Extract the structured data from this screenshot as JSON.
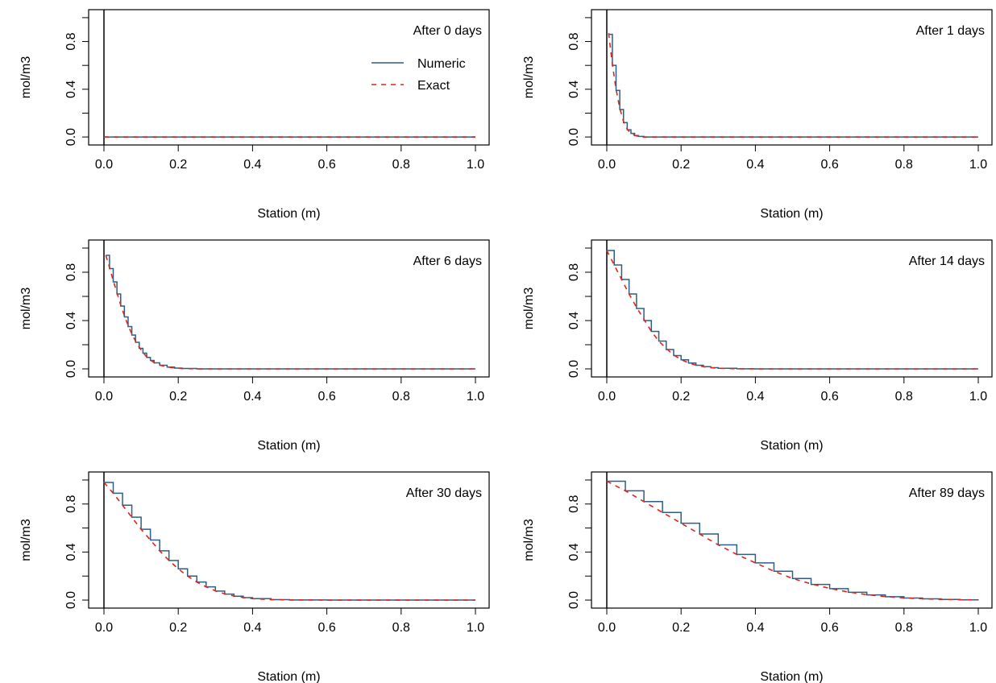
{
  "colors": {
    "numeric": "#2f5e82",
    "exact": "#e2231a"
  },
  "chart_data": [
    {
      "type": "line",
      "title": "After 0 days",
      "xlabel": "Station (m)",
      "ylabel": "mol/m3",
      "xlim": [
        0,
        1
      ],
      "ylim": [
        0,
        1
      ],
      "x_ticks": [
        "0.0",
        "0.2",
        "0.4",
        "0.6",
        "0.8",
        "1.0"
      ],
      "y_ticks": [
        "0.0",
        "0.4",
        "0.8"
      ],
      "legend": {
        "position": "top-right",
        "entries": [
          "Numeric",
          "Exact"
        ]
      },
      "series": [
        {
          "name": "Numeric",
          "style": "step",
          "x": [
            0.0,
            0.1,
            0.2,
            0.3,
            0.4,
            0.5,
            0.6,
            0.7,
            0.8,
            0.9,
            1.0
          ],
          "y": [
            0,
            0,
            0,
            0,
            0,
            0,
            0,
            0,
            0,
            0,
            0
          ]
        },
        {
          "name": "Exact",
          "style": "dashed",
          "x": [
            0.0,
            0.1,
            0.2,
            0.3,
            0.4,
            0.5,
            0.6,
            0.7,
            0.8,
            0.9,
            1.0
          ],
          "y": [
            0,
            0,
            0,
            0,
            0,
            0,
            0,
            0,
            0,
            0,
            0
          ]
        }
      ]
    },
    {
      "type": "line",
      "title": "After 1 days",
      "xlabel": "Station (m)",
      "ylabel": "mol/m3",
      "xlim": [
        0,
        1
      ],
      "ylim": [
        0,
        1
      ],
      "x_ticks": [
        "0.0",
        "0.2",
        "0.4",
        "0.6",
        "0.8",
        "1.0"
      ],
      "y_ticks": [
        "0.0",
        "0.4",
        "0.8"
      ],
      "series": [
        {
          "name": "Numeric",
          "style": "step",
          "x": [
            0.005,
            0.015,
            0.025,
            0.035,
            0.045,
            0.055,
            0.065,
            0.075,
            0.085,
            0.1,
            0.2,
            0.4,
            0.6,
            0.8,
            1.0
          ],
          "y": [
            0.86,
            0.6,
            0.39,
            0.23,
            0.12,
            0.06,
            0.03,
            0.012,
            0.005,
            0.0,
            0.0,
            0.0,
            0.0,
            0.0,
            0.0
          ]
        },
        {
          "name": "Exact",
          "style": "dashed",
          "x": [
            0.005,
            0.015,
            0.025,
            0.035,
            0.045,
            0.055,
            0.065,
            0.075,
            0.085,
            0.1,
            0.2,
            0.4,
            0.6,
            0.8,
            1.0
          ],
          "y": [
            0.87,
            0.61,
            0.4,
            0.24,
            0.13,
            0.065,
            0.03,
            0.013,
            0.005,
            0.0,
            0.0,
            0.0,
            0.0,
            0.0,
            0.0
          ]
        }
      ]
    },
    {
      "type": "line",
      "title": "After 6 days",
      "xlabel": "Station (m)",
      "ylabel": "mol/m3",
      "xlim": [
        0,
        1
      ],
      "ylim": [
        0,
        1
      ],
      "x_ticks": [
        "0.0",
        "0.2",
        "0.4",
        "0.6",
        "0.8",
        "1.0"
      ],
      "y_ticks": [
        "0.0",
        "0.4",
        "0.8"
      ],
      "series": [
        {
          "name": "Numeric",
          "style": "step",
          "x": [
            0.005,
            0.015,
            0.025,
            0.035,
            0.045,
            0.055,
            0.065,
            0.075,
            0.085,
            0.095,
            0.105,
            0.115,
            0.125,
            0.135,
            0.15,
            0.17,
            0.19,
            0.21,
            0.25,
            0.4,
            0.6,
            0.8,
            1.0
          ],
          "y": [
            0.94,
            0.83,
            0.72,
            0.62,
            0.52,
            0.43,
            0.35,
            0.28,
            0.22,
            0.17,
            0.13,
            0.095,
            0.07,
            0.05,
            0.03,
            0.015,
            0.007,
            0.003,
            0.0,
            0.0,
            0.0,
            0.0,
            0.0
          ]
        },
        {
          "name": "Exact",
          "style": "dashed",
          "x": [
            0.005,
            0.015,
            0.025,
            0.035,
            0.045,
            0.055,
            0.065,
            0.075,
            0.085,
            0.095,
            0.105,
            0.115,
            0.125,
            0.135,
            0.15,
            0.17,
            0.19,
            0.21,
            0.25,
            0.4,
            0.6,
            0.8,
            1.0
          ],
          "y": [
            0.94,
            0.84,
            0.73,
            0.63,
            0.53,
            0.44,
            0.36,
            0.29,
            0.23,
            0.18,
            0.135,
            0.1,
            0.073,
            0.052,
            0.032,
            0.016,
            0.008,
            0.003,
            0.0,
            0.0,
            0.0,
            0.0,
            0.0
          ]
        }
      ]
    },
    {
      "type": "line",
      "title": "After 14 days",
      "xlabel": "Station (m)",
      "ylabel": "mol/m3",
      "xlim": [
        0,
        1
      ],
      "ylim": [
        0,
        1
      ],
      "x_ticks": [
        "0.0",
        "0.2",
        "0.4",
        "0.6",
        "0.8",
        "1.0"
      ],
      "y_ticks": [
        "0.0",
        "0.4",
        "0.8"
      ],
      "series": [
        {
          "name": "Numeric",
          "style": "step",
          "x": [
            0.0,
            0.02,
            0.04,
            0.06,
            0.08,
            0.1,
            0.12,
            0.14,
            0.16,
            0.18,
            0.2,
            0.22,
            0.24,
            0.26,
            0.28,
            0.3,
            0.35,
            0.4,
            0.6,
            0.8,
            1.0
          ],
          "y": [
            0.98,
            0.86,
            0.74,
            0.62,
            0.5,
            0.4,
            0.31,
            0.23,
            0.16,
            0.11,
            0.075,
            0.048,
            0.03,
            0.018,
            0.01,
            0.005,
            0.001,
            0.0,
            0.0,
            0.0,
            0.0
          ]
        },
        {
          "name": "Exact",
          "style": "dashed",
          "x": [
            0.0,
            0.02,
            0.04,
            0.06,
            0.08,
            0.1,
            0.12,
            0.14,
            0.16,
            0.18,
            0.2,
            0.22,
            0.24,
            0.26,
            0.28,
            0.3,
            0.35,
            0.4,
            0.6,
            0.8,
            1.0
          ],
          "y": [
            0.98,
            0.86,
            0.74,
            0.62,
            0.51,
            0.41,
            0.31,
            0.23,
            0.17,
            0.115,
            0.077,
            0.05,
            0.031,
            0.018,
            0.01,
            0.005,
            0.001,
            0.0,
            0.0,
            0.0,
            0.0
          ]
        }
      ]
    },
    {
      "type": "line",
      "title": "After 30 days",
      "xlabel": "Station (m)",
      "ylabel": "mol/m3",
      "xlim": [
        0,
        1
      ],
      "ylim": [
        0,
        1
      ],
      "x_ticks": [
        "0.0",
        "0.2",
        "0.4",
        "0.6",
        "0.8",
        "1.0"
      ],
      "y_ticks": [
        "0.0",
        "0.4",
        "0.8"
      ],
      "series": [
        {
          "name": "Numeric",
          "style": "step",
          "x": [
            0.0,
            0.025,
            0.05,
            0.075,
            0.1,
            0.125,
            0.15,
            0.175,
            0.2,
            0.225,
            0.25,
            0.275,
            0.3,
            0.325,
            0.35,
            0.375,
            0.4,
            0.45,
            0.5,
            0.6,
            0.8,
            1.0
          ],
          "y": [
            0.98,
            0.89,
            0.79,
            0.69,
            0.59,
            0.5,
            0.41,
            0.33,
            0.26,
            0.2,
            0.15,
            0.11,
            0.075,
            0.05,
            0.032,
            0.02,
            0.012,
            0.004,
            0.001,
            0.0,
            0.0,
            0.0
          ]
        },
        {
          "name": "Exact",
          "style": "dashed",
          "x": [
            0.0,
            0.025,
            0.05,
            0.075,
            0.1,
            0.125,
            0.15,
            0.175,
            0.2,
            0.225,
            0.25,
            0.275,
            0.3,
            0.325,
            0.35,
            0.375,
            0.4,
            0.45,
            0.5,
            0.6,
            0.8,
            1.0
          ],
          "y": [
            0.98,
            0.89,
            0.79,
            0.69,
            0.59,
            0.5,
            0.41,
            0.33,
            0.26,
            0.2,
            0.15,
            0.11,
            0.077,
            0.052,
            0.034,
            0.021,
            0.012,
            0.004,
            0.001,
            0.0,
            0.0,
            0.0
          ]
        }
      ]
    },
    {
      "type": "line",
      "title": "After 89 days",
      "xlabel": "Station (m)",
      "ylabel": "mol/m3",
      "xlim": [
        0,
        1
      ],
      "ylim": [
        0,
        1
      ],
      "x_ticks": [
        "0.0",
        "0.2",
        "0.4",
        "0.6",
        "0.8",
        "1.0"
      ],
      "y_ticks": [
        "0.0",
        "0.4",
        "0.8"
      ],
      "series": [
        {
          "name": "Numeric",
          "style": "step",
          "x": [
            0.0,
            0.05,
            0.1,
            0.15,
            0.2,
            0.25,
            0.3,
            0.35,
            0.4,
            0.45,
            0.5,
            0.55,
            0.6,
            0.65,
            0.7,
            0.75,
            0.8,
            0.85,
            0.9,
            0.95,
            1.0
          ],
          "y": [
            0.99,
            0.91,
            0.82,
            0.73,
            0.64,
            0.55,
            0.46,
            0.38,
            0.31,
            0.24,
            0.18,
            0.13,
            0.095,
            0.065,
            0.043,
            0.028,
            0.017,
            0.01,
            0.005,
            0.002,
            0.001
          ]
        },
        {
          "name": "Exact",
          "style": "dashed",
          "x": [
            0.0,
            0.05,
            0.1,
            0.15,
            0.2,
            0.25,
            0.3,
            0.35,
            0.4,
            0.45,
            0.5,
            0.55,
            0.6,
            0.65,
            0.7,
            0.75,
            0.8,
            0.85,
            0.9,
            0.95,
            1.0
          ],
          "y": [
            0.99,
            0.91,
            0.82,
            0.73,
            0.64,
            0.55,
            0.46,
            0.38,
            0.31,
            0.24,
            0.18,
            0.135,
            0.097,
            0.067,
            0.045,
            0.029,
            0.018,
            0.011,
            0.006,
            0.003,
            0.001
          ]
        }
      ]
    }
  ]
}
